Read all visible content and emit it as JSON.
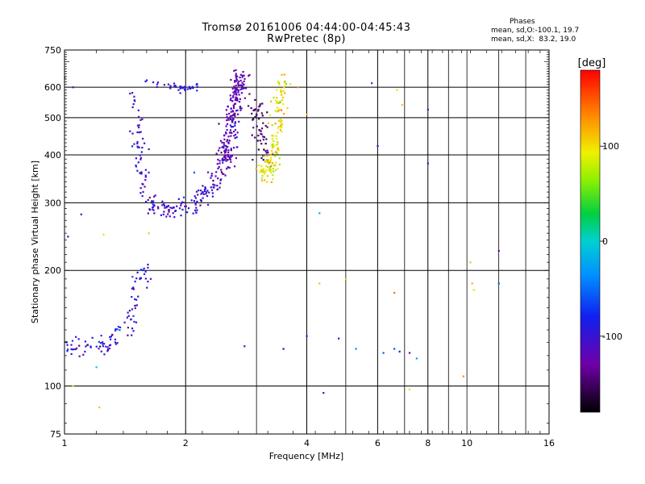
{
  "header": {
    "title": "Tromsø 20161006 04:44:00-04:45:43",
    "subtitle": "RwPretec (8p)"
  },
  "phases_box": {
    "heading": "Phases",
    "line_o": "mean, sd,O:-100.1, 19.7",
    "line_x": "mean, sd,X:  83.2, 19.0"
  },
  "colorbar": {
    "unit": "[deg]",
    "ticks": [
      {
        "value": 100,
        "label": "100"
      },
      {
        "value": 0,
        "label": "0"
      },
      {
        "value": -100,
        "label": "-100"
      }
    ],
    "range": [
      -180,
      180
    ]
  },
  "chart_data": {
    "type": "scatter",
    "title": "Tromsø 20161006 04:44:00-04:45:43",
    "subtitle": "RwPretec (8p)",
    "xlabel": "Frequency [MHz]",
    "ylabel": "Stationary phase Virtual Height [km]",
    "x_scale": "log",
    "y_scale": "log",
    "xlim": [
      1,
      16
    ],
    "ylim": [
      75,
      750
    ],
    "x_ticks": [
      {
        "value": 1,
        "label": "1"
      },
      {
        "value": 2,
        "label": "2"
      },
      {
        "value": 4,
        "label": "4"
      },
      {
        "value": 6,
        "label": "6"
      },
      {
        "value": 8,
        "label": "8"
      },
      {
        "value": 10,
        "label": "10"
      },
      {
        "value": 16,
        "label": "16"
      }
    ],
    "x_grid": [
      2,
      4,
      6,
      8
    ],
    "x_minor": [
      3,
      5,
      7,
      9,
      10,
      12,
      14
    ],
    "y_ticks": [
      {
        "value": 75,
        "label": "75"
      },
      {
        "value": 100,
        "label": "100"
      },
      {
        "value": 200,
        "label": "200"
      },
      {
        "value": 300,
        "label": "300"
      },
      {
        "value": 400,
        "label": "400"
      },
      {
        "value": 500,
        "label": "500"
      },
      {
        "value": 600,
        "label": "600"
      },
      {
        "value": 750,
        "label": "750"
      }
    ],
    "y_grid": [
      100,
      200,
      300,
      400,
      500,
      600
    ],
    "color_value": "phase [deg]",
    "traces": [
      {
        "x": [
          1.0,
          1.03,
          1.06,
          1.1,
          1.15,
          1.2,
          1.25,
          1.3,
          1.35,
          1.4,
          1.45,
          1.48,
          1.5,
          1.52,
          1.55,
          1.6
        ],
        "y": [
          128,
          125,
          124,
          126,
          127,
          129,
          126,
          130,
          133,
          140,
          150,
          162,
          175,
          190,
          200,
          195
        ],
        "spread": 0.06,
        "n": 110,
        "phase": -100,
        "sd": 20
      },
      {
        "x": [
          1.5,
          1.53,
          1.56,
          1.6,
          1.65,
          1.7,
          1.8,
          1.9,
          2.0,
          2.1,
          2.2,
          2.3,
          2.4,
          2.5,
          2.55,
          2.62,
          2.68,
          2.72
        ],
        "y": [
          470,
          400,
          350,
          315,
          295,
          288,
          287,
          290,
          295,
          300,
          310,
          325,
          345,
          380,
          420,
          490,
          560,
          630
        ],
        "spread": 0.05,
        "n": 230,
        "phase": -105,
        "sd": 18
      },
      {
        "x": [
          2.4,
          2.5,
          2.55,
          2.62,
          2.66,
          2.7,
          2.75
        ],
        "y": [
          340,
          380,
          430,
          500,
          560,
          610,
          640
        ],
        "spread": 0.06,
        "n": 160,
        "phase": -125,
        "sd": 8
      },
      {
        "x": [
          1.6,
          1.7,
          1.8,
          1.9,
          2.0,
          2.1,
          2.15
        ],
        "y": [
          620,
          612,
          605,
          598,
          595,
          598,
          610
        ],
        "spread": 0.02,
        "n": 40,
        "phase": -95,
        "sd": 12
      },
      {
        "x": [
          1.45,
          1.5,
          1.52,
          1.55,
          1.58
        ],
        "y": [
          580,
          540,
          500,
          460,
          420
        ],
        "spread": 0.03,
        "n": 18,
        "phase": -110,
        "sd": 10
      },
      {
        "x": [
          3.0,
          3.02,
          3.05,
          3.1,
          3.15,
          3.2
        ],
        "y": [
          560,
          520,
          480,
          450,
          420,
          400
        ],
        "spread": 0.06,
        "n": 60,
        "phase": -150,
        "sd": 10
      },
      {
        "x": [
          3.1,
          3.2,
          3.3,
          3.35,
          3.4,
          3.45,
          3.48
        ],
        "y": [
          355,
          365,
          385,
          430,
          500,
          560,
          620
        ],
        "spread": 0.05,
        "n": 140,
        "phase": 95,
        "sd": 20
      },
      {
        "x": [
          1.05,
          1.2,
          1.22,
          1.02,
          1.62,
          2.1,
          2.8,
          3.5,
          4.0,
          4.3,
          4.3,
          4.4,
          4.8,
          5.0,
          5.3,
          5.8,
          6.0,
          6.2,
          6.6,
          6.7,
          6.9,
          7.2,
          7.5,
          8.0,
          8.0,
          9.8,
          10.2,
          10.3,
          10.4,
          12.0,
          12.0,
          1.1,
          1.25,
          1.0,
          1.05,
          3.8,
          4.0,
          6.6,
          6.8,
          7.2
        ],
        "y": [
          100,
          112,
          88,
          245,
          250,
          360,
          127,
          125,
          135,
          282,
          185,
          96,
          133,
          190,
          125,
          615,
          422,
          122,
          175,
          590,
          540,
          98,
          118,
          525,
          380,
          106,
          210,
          185,
          178,
          225,
          185,
          280,
          248,
          635,
          600,
          600,
          510,
          125,
          123,
          122
        ],
        "spread": 0.0,
        "n": 0,
        "phase": 0,
        "sd": 0,
        "scatter_phases": [
          80,
          0,
          110,
          -100,
          110,
          -60,
          -100,
          -140,
          -100,
          -20,
          110,
          -100,
          -100,
          110,
          -40,
          -70,
          -80,
          -60,
          140,
          100,
          110,
          100,
          -30,
          -100,
          -100,
          130,
          110,
          120,
          100,
          -130,
          -60,
          -110,
          100,
          -110,
          -120,
          130,
          110,
          -60,
          -80,
          -130
        ]
      }
    ]
  }
}
